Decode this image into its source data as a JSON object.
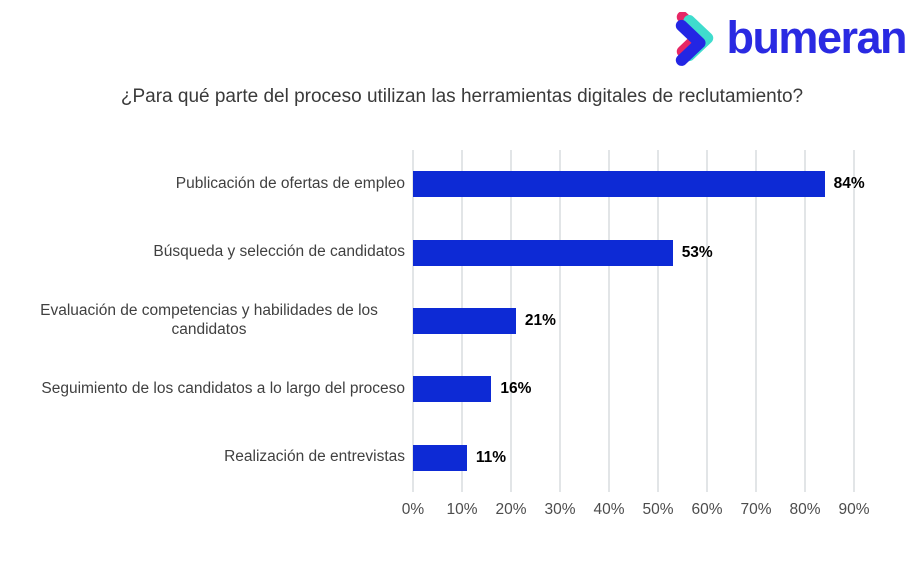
{
  "logo": {
    "brand": "bumeran",
    "text_color": "#2A2AE2",
    "mark_colors": {
      "pink": "#E62765",
      "teal": "#3FDCCD",
      "blue": "#2326E4"
    }
  },
  "chart_data": {
    "type": "bar",
    "orientation": "horizontal",
    "title": "¿Para qué parte del proceso utilizan las herramientas digitales de reclutamiento?",
    "categories": [
      "Publicación de ofertas de empleo",
      "Búsqueda y selección de candidatos",
      "Evaluación de competencias y habilidades de los candidatos",
      "Seguimiento de los candidatos a lo largo del proceso",
      "Realización de entrevistas"
    ],
    "values": [
      84,
      53,
      21,
      16,
      11
    ],
    "value_labels": [
      "84%",
      "53%",
      "21%",
      "16%",
      "11%"
    ],
    "x_ticks": [
      "0%",
      "10%",
      "20%",
      "30%",
      "40%",
      "50%",
      "60%",
      "70%",
      "80%",
      "90%"
    ],
    "xlim": [
      0,
      90
    ],
    "grid": true,
    "legend": false,
    "bar_color": "#0D2AD5",
    "gridline_color": "#E2E5E7",
    "title_color": "#3A3A3A",
    "category_label_color": "#404040",
    "value_label_color": "#000000",
    "tick_label_color": "#4C4C4C"
  }
}
